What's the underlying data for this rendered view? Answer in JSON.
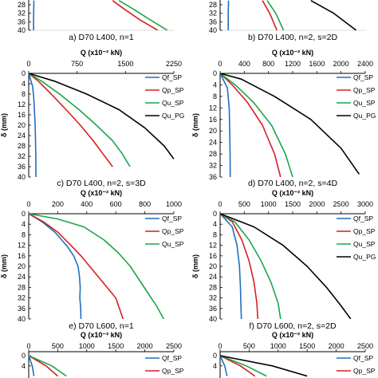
{
  "figure": {
    "captions": {
      "a": "a) D70 L400, n=1",
      "b": "b) D70 L400, n=2, s=2D",
      "c": "c) D70 L400, n=2, s=3D",
      "d": "d) D70 L400, n=2, s=4D",
      "e": "e) D70 L600, n=1",
      "f": "f) D70 L600, n=2, s=2D"
    },
    "colors": {
      "Qf_SP": "#1f6fbf",
      "Qp_SP": "#d62020",
      "Qu_SP": "#1aa64a",
      "Qu_PG": "#000000"
    }
  },
  "chart_data": [
    {
      "id": "a",
      "type": "line",
      "caption": "a) D70 L400, n=1",
      "partial": "top cut off; only depth ticks 28-40 visible",
      "ylabel": "",
      "ylim": [
        40,
        24
      ],
      "yticks": [
        "28",
        "32",
        "36",
        "40"
      ],
      "series": [
        {
          "name": "Qf_SP",
          "x": [
            80,
            78,
            76,
            75
          ],
          "y": [
            26,
            30,
            35,
            40
          ]
        },
        {
          "name": "Qp_SP",
          "x": [
            1300,
            1480,
            1720,
            2000
          ],
          "y": [
            26,
            30,
            35,
            40
          ]
        },
        {
          "name": "Qu_SP",
          "x": [
            1400,
            1620,
            1880,
            2150
          ],
          "y": [
            26,
            30,
            35,
            40
          ]
        }
      ]
    },
    {
      "id": "b",
      "type": "line",
      "caption": "b) D70 L400, n=2, s=2D",
      "partial": "top cut off; only depth ticks 28-40 visible",
      "ylabel": "",
      "ylim": [
        40,
        24
      ],
      "yticks": [
        "28",
        "32",
        "36",
        "40"
      ],
      "series": [
        {
          "name": "Qf_SP",
          "x": [
            140,
            135,
            135
          ],
          "y": [
            26,
            32,
            40
          ]
        },
        {
          "name": "Qp_SP",
          "x": [
            700,
            820,
            940
          ],
          "y": [
            26,
            32,
            40
          ]
        },
        {
          "name": "Qu_SP",
          "x": [
            780,
            920,
            1050
          ],
          "y": [
            26,
            32,
            40
          ]
        },
        {
          "name": "Qu_PG",
          "x": [
            1500,
            1880,
            2250
          ],
          "y": [
            26,
            32,
            40
          ]
        }
      ]
    },
    {
      "id": "c",
      "type": "line",
      "caption": "c) D70 L400, n=2, s=3D",
      "title": "Q (x10⁻² kN)",
      "ylabel": "δ (mm)",
      "xlim": [
        0,
        2250
      ],
      "xticks": [
        "0",
        "750",
        "1500",
        "2250"
      ],
      "ylim": [
        40,
        0
      ],
      "yticks": [
        "0",
        "4",
        "8",
        "12",
        "16",
        "20",
        "24",
        "28",
        "32",
        "36",
        "40"
      ],
      "legend": "right",
      "series": [
        {
          "name": "Qf_SP",
          "x": [
            0,
            60,
            80,
            90,
            100,
            105,
            110,
            112
          ],
          "y": [
            0,
            5,
            10,
            15,
            20,
            25,
            32,
            40
          ]
        },
        {
          "name": "Qp_SP",
          "x": [
            0,
            150,
            350,
            580,
            800,
            1000,
            1150,
            1300
          ],
          "y": [
            0,
            3,
            8,
            14,
            20,
            26,
            31,
            36
          ]
        },
        {
          "name": "Qu_SP",
          "x": [
            0,
            200,
            480,
            780,
            1050,
            1300,
            1450,
            1570
          ],
          "y": [
            0,
            3,
            8,
            14,
            20,
            26,
            31,
            36
          ]
        },
        {
          "name": "Qu_PG",
          "x": [
            0,
            400,
            900,
            1400,
            1800,
            2100,
            2250
          ],
          "y": [
            0,
            3,
            8,
            14,
            21,
            28,
            33
          ]
        }
      ]
    },
    {
      "id": "d",
      "type": "line",
      "caption": "d) D70 L400, n=2, s=4D",
      "title": "Q (x10⁻² kN)",
      "ylabel": "δ (mm)",
      "xlim": [
        0,
        2400
      ],
      "xticks": [
        "0",
        "400",
        "800",
        "1200",
        "1600",
        "2000",
        "2400"
      ],
      "ylim": [
        36,
        0
      ],
      "yticks": [
        "0",
        "4",
        "8",
        "12",
        "16",
        "20",
        "24",
        "28",
        "32",
        "36"
      ],
      "legend": "right",
      "series": [
        {
          "name": "Qf_SP",
          "x": [
            0,
            120,
            150,
            160,
            165,
            168
          ],
          "y": [
            0,
            5,
            12,
            20,
            28,
            36
          ]
        },
        {
          "name": "Qp_SP",
          "x": [
            0,
            200,
            450,
            700,
            900,
            1000
          ],
          "y": [
            0,
            4,
            10,
            18,
            28,
            36
          ]
        },
        {
          "name": "Qu_SP",
          "x": [
            0,
            250,
            550,
            850,
            1080,
            1200
          ],
          "y": [
            0,
            4,
            10,
            18,
            28,
            36
          ]
        },
        {
          "name": "Qu_PG",
          "x": [
            0,
            350,
            900,
            1500,
            2000,
            2300
          ],
          "y": [
            0,
            2,
            8,
            16,
            26,
            35
          ]
        }
      ]
    },
    {
      "id": "e",
      "type": "line",
      "caption": "e) D70 L600, n=1",
      "title": "Q (x10⁻² kN)",
      "ylabel": "δ (mm)",
      "xlim": [
        0,
        1000
      ],
      "xticks": [
        "0",
        "200",
        "400",
        "600",
        "800",
        "1000"
      ],
      "ylim": [
        40,
        0
      ],
      "yticks": [
        "0",
        "4",
        "8",
        "12",
        "16",
        "20",
        "24",
        "28",
        "32",
        "36",
        "40"
      ],
      "legend": "right",
      "series": [
        {
          "name": "Qf_SP",
          "x": [
            0,
            90,
            180,
            260,
            310,
            340,
            350,
            355,
            352,
            358,
            360
          ],
          "y": [
            0,
            3,
            7,
            12,
            16,
            20,
            24,
            28,
            32,
            36,
            40
          ]
        },
        {
          "name": "Qp_SP",
          "x": [
            0,
            100,
            200,
            290,
            360,
            420,
            480,
            540,
            600,
            650
          ],
          "y": [
            0,
            3,
            7,
            12,
            16,
            20,
            24,
            28,
            32,
            40
          ]
        },
        {
          "name": "Qu_SP",
          "x": [
            0,
            200,
            380,
            520,
            620,
            700,
            760,
            820,
            880,
            930
          ],
          "y": [
            0,
            2,
            5,
            10,
            15,
            20,
            25,
            30,
            35,
            40
          ]
        }
      ]
    },
    {
      "id": "f",
      "type": "line",
      "caption": "f) D70 L600, n=2, s=2D",
      "title": "Q (x10⁻² kN)",
      "ylabel": "δ (mm)",
      "xlim": [
        0,
        3000
      ],
      "xticks": [
        "0",
        "500",
        "1000",
        "1500",
        "2000",
        "2500",
        "3000"
      ],
      "ylim": [
        40,
        0
      ],
      "yticks": [
        "0",
        "4",
        "8",
        "12",
        "16",
        "20",
        "24",
        "28",
        "32",
        "36",
        "40"
      ],
      "legend": "right",
      "series": [
        {
          "name": "Qf_SP",
          "x": [
            0,
            250,
            350,
            400,
            420,
            430,
            440
          ],
          "y": [
            0,
            5,
            12,
            20,
            28,
            35,
            40
          ]
        },
        {
          "name": "Qp_SP",
          "x": [
            0,
            250,
            450,
            600,
            700,
            760,
            780
          ],
          "y": [
            0,
            3,
            10,
            18,
            26,
            34,
            40
          ]
        },
        {
          "name": "Qu_SP",
          "x": [
            0,
            300,
            600,
            850,
            1050,
            1200,
            1250
          ],
          "y": [
            0,
            3,
            10,
            18,
            26,
            34,
            40
          ]
        },
        {
          "name": "Qu_PG",
          "x": [
            0,
            700,
            1300,
            1800,
            2200,
            2500,
            2700
          ],
          "y": [
            0,
            5,
            12,
            20,
            28,
            35,
            40
          ]
        }
      ]
    },
    {
      "id": "g",
      "type": "line",
      "partial": "bottom cut off; only axis title, x ticks and first depth ticks visible",
      "title": "Q (x10⁻² kN)",
      "xlim": [
        0,
        2500
      ],
      "xticks": [
        "0",
        "500",
        "1000",
        "1500",
        "2000",
        "2500"
      ],
      "ylim": [
        8,
        0
      ],
      "yticks": [
        "0",
        "4"
      ],
      "legend": "right",
      "series": [
        {
          "name": "Qf_SP",
          "x": [
            0,
            60,
            90
          ],
          "y": [
            0,
            4,
            8
          ]
        },
        {
          "name": "Qp_SP",
          "x": [
            0,
            300,
            500
          ],
          "y": [
            0,
            4,
            8
          ]
        },
        {
          "name": "Qu_SP",
          "x": [
            0,
            400,
            650
          ],
          "y": [
            0,
            4,
            8
          ]
        }
      ]
    },
    {
      "id": "h",
      "type": "line",
      "partial": "bottom cut off; only axis title, x ticks and first depth ticks visible",
      "title": "Q (x10⁻² kN)",
      "xlim": [
        0,
        2500
      ],
      "xticks": [
        "0",
        "500",
        "1000",
        "1500",
        "2000",
        "2500"
      ],
      "ylim": [
        8,
        0
      ],
      "yticks": [
        "0",
        "4"
      ],
      "legend": "right",
      "series": [
        {
          "name": "Qf_SP",
          "x": [
            0,
            80,
            120
          ],
          "y": [
            0,
            4,
            8
          ]
        },
        {
          "name": "Qp_SP",
          "x": [
            0,
            350,
            600
          ],
          "y": [
            0,
            4,
            8
          ]
        },
        {
          "name": "Qu_SP",
          "x": [
            0,
            450,
            800
          ],
          "y": [
            0,
            4,
            8
          ]
        },
        {
          "name": "Qu_PG",
          "x": [
            0,
            900,
            1500
          ],
          "y": [
            0,
            4,
            8
          ]
        }
      ]
    }
  ]
}
